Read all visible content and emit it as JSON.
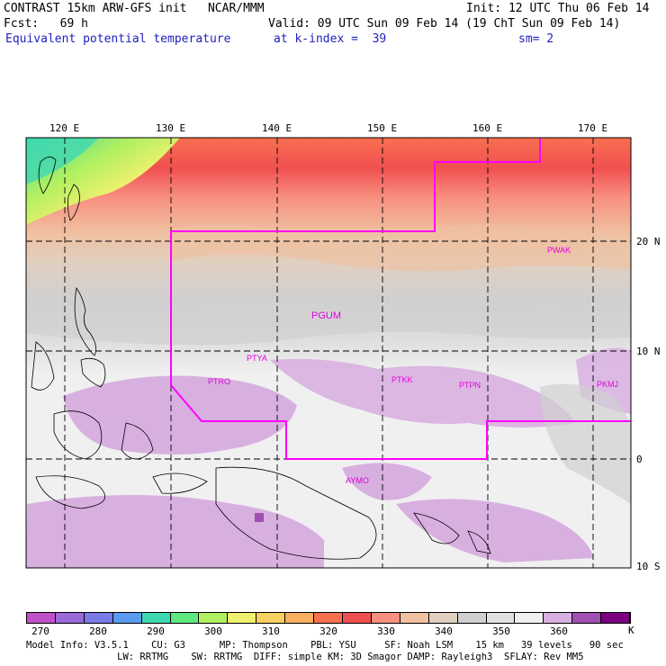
{
  "header": {
    "line1_left": "CONTRAST 15km ARW-GFS init   NCAR/MMM",
    "line1_right": "Init: 12 UTC Thu 06 Feb 14",
    "line2_left": "Fcst:   69 h",
    "line2_right": "Valid: 09 UTC Sun 09 Feb 14 (19 ChT Sun 09 Feb 14)",
    "line3_left": "Equivalent potential temperature",
    "line3_mid": "at k-index =  39",
    "line3_right": "sm= 2"
  },
  "map": {
    "lon_labels": [
      "120 E",
      "130 E",
      "140 E",
      "150 E",
      "160 E",
      "170 E"
    ],
    "lat_labels": [
      "20 N",
      "10 N",
      "0",
      "10 S"
    ],
    "stations": [
      "PWAK",
      "PGUM",
      "PTYA",
      "PTRO",
      "PTKK",
      "PTPN",
      "PKMJ",
      "AYMO"
    ],
    "station_color": "#e000e0",
    "boundary_color": "#ff00ff"
  },
  "colorbar": {
    "colors": [
      "#c050c8",
      "#9a6ad8",
      "#7a7ae8",
      "#5a9af0",
      "#40d8b0",
      "#60e880",
      "#b0f060",
      "#f0f070",
      "#f8d060",
      "#f8b060",
      "#f87050",
      "#f05050",
      "#f89080",
      "#f0c0a0",
      "#e0d0c0",
      "#d0d0d0",
      "#e0e0e0",
      "#f0f0f0",
      "#d8b0e0",
      "#a050b0",
      "#7a0080"
    ],
    "labels": [
      "270",
      "280",
      "290",
      "300",
      "310",
      "320",
      "330",
      "340",
      "350",
      "360"
    ],
    "unit": "K"
  },
  "footer": {
    "line1": "Model Info: V3.5.1    CU: G3      MP: Thompson    PBL: YSU     SF: Noah LSM    15 km   39 levels   90 sec",
    "line2": "                LW: RRTMG    SW: RRTMG  DIFF: simple KM: 3D Smagor DAMP: Rayleigh3  SFLAY: Rev MM5"
  }
}
